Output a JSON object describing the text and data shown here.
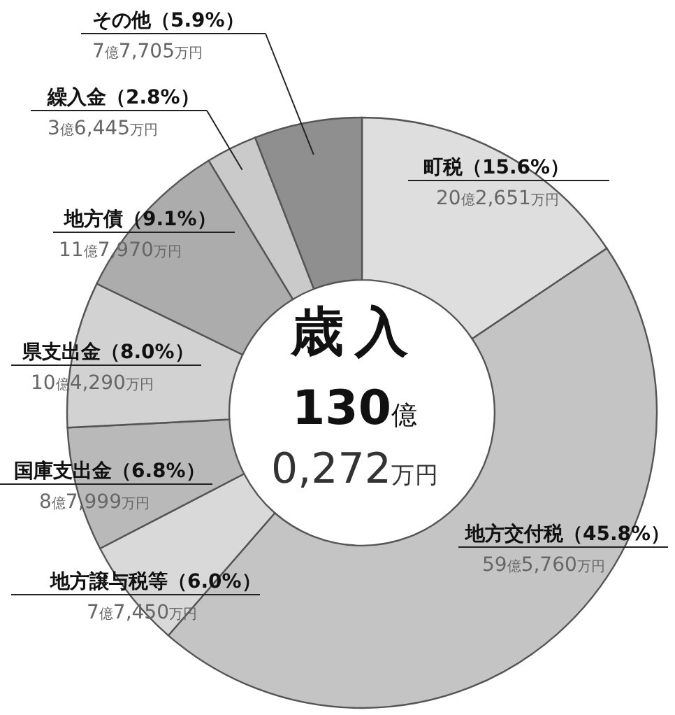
{
  "chart_data": {
    "type": "donut",
    "categories": [
      "町税（15.6%）",
      "地方交付税（45.8%）",
      "地方譲与税等（6.0%）",
      "国庫支出金（6.8%）",
      "県支出金（8.0%）",
      "地方債（9.1%）",
      "繰入金（2.8%）",
      "その他（5.9%）"
    ],
    "values": [
      15.6,
      45.8,
      6.0,
      6.8,
      8.0,
      9.1,
      2.8,
      5.9
    ],
    "colors": [
      "#dedede",
      "#c4c4c4",
      "#d9d9d9",
      "#b9b9b9",
      "#d2d2d2",
      "#acacac",
      "#cacaca",
      "#8f8f8f"
    ],
    "annotations": [
      "歳入",
      "130億",
      "0,272万円",
      "20億2,651万円",
      "59億5,760万円",
      "7億7,450万円",
      "8億7,999万円",
      "10億4,290万円",
      "11億7,970万円",
      "3億6,445万円",
      "7億7,705万円"
    ]
  }
}
